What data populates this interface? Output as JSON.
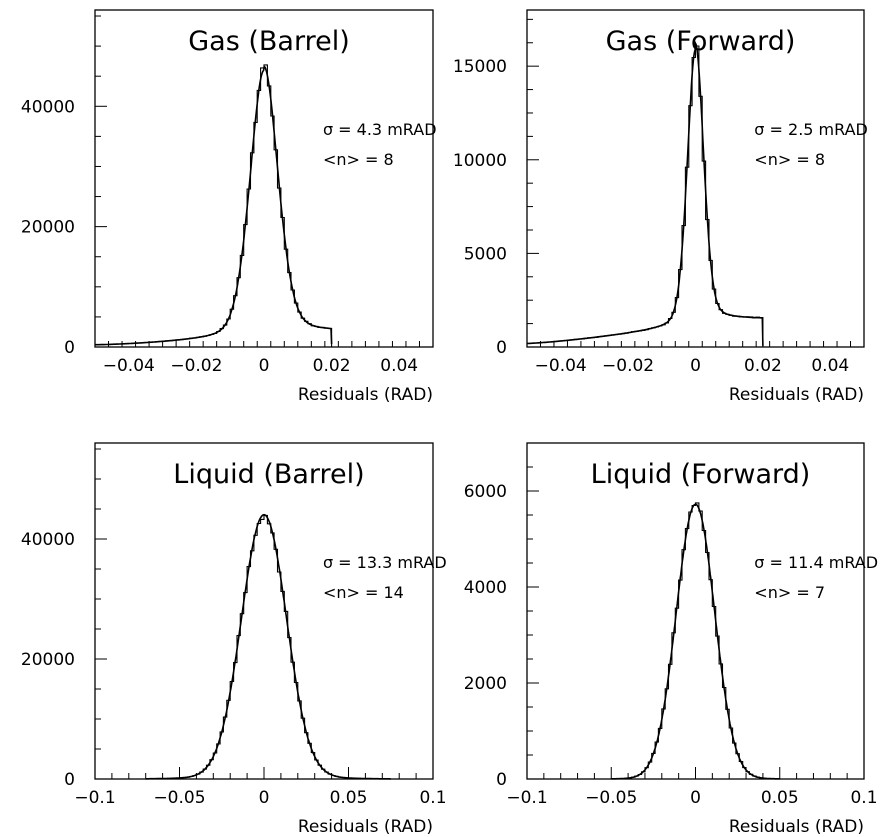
{
  "chart_data": [
    {
      "id": "gas-barrel",
      "type": "histogram",
      "title": "Gas (Barrel)",
      "xlabel": "Residuals (RAD)",
      "ylabel": "",
      "xlim": [
        -0.05,
        0.05
      ],
      "ylim": [
        0,
        56000
      ],
      "xticks": [
        -0.04,
        -0.02,
        0,
        0.02,
        0.04
      ],
      "xtick_labels": [
        "−0.04",
        "−0.02",
        "0",
        "0.02",
        "0.04"
      ],
      "yticks": [
        0,
        20000,
        40000
      ],
      "ytick_labels": [
        "0",
        "20000",
        "40000"
      ],
      "annotations": [
        "σ = 4.3 mRAD",
        "<n> = 8"
      ],
      "shape": {
        "amp": 44000,
        "mu": 0,
        "sigma": 0.0043,
        "gamma": 0.0042,
        "bgStart": -0.05,
        "bgEnd": 0.02,
        "bgAt0": 2200,
        "bgSlope": 1.5,
        "bgNeg": 2000,
        "bgPos": 2600
      },
      "hist_range": [
        -0.05,
        0.02
      ],
      "fit_range": [
        -0.05,
        0.02
      ]
    },
    {
      "id": "gas-forward",
      "type": "histogram",
      "title": "Gas (Forward)",
      "xlabel": "Residuals (RAD)",
      "ylabel": "",
      "xlim": [
        -0.05,
        0.05
      ],
      "ylim": [
        0,
        18000
      ],
      "xticks": [
        -0.04,
        -0.02,
        0,
        0.02,
        0.04
      ],
      "xtick_labels": [
        "−0.04",
        "−0.02",
        "0",
        "0.02",
        "0.04"
      ],
      "yticks": [
        0,
        5000,
        10000,
        15000
      ],
      "ytick_labels": [
        "0",
        "5000",
        "10000",
        "15000"
      ],
      "annotations": [
        "σ = 2.5 mRAD",
        "<n> = 8"
      ],
      "shape": {
        "amp": 14700,
        "mu": 0,
        "sigma": 0.0025,
        "gamma": 0.0025,
        "bgStart": -0.05,
        "bgEnd": 0.02,
        "bgAt0": 1500,
        "bgSlope": 1.3,
        "bgNeg": 1200,
        "bgPos": 1500
      },
      "hist_range": [
        -0.05,
        0.02
      ],
      "fit_range": [
        -0.05,
        0.02
      ]
    },
    {
      "id": "liquid-barrel",
      "type": "histogram",
      "title": "Liquid (Barrel)",
      "xlabel": "Residuals (RAD)",
      "ylabel": "",
      "xlim": [
        -0.1,
        0.1
      ],
      "ylim": [
        0,
        56000
      ],
      "xticks": [
        -0.1,
        -0.05,
        0,
        0.05,
        0.1
      ],
      "xtick_labels": [
        "−0.1",
        "−0.05",
        "0",
        "0.05",
        "0.1"
      ],
      "yticks": [
        0,
        20000,
        40000
      ],
      "ytick_labels": [
        "0",
        "20000",
        "40000"
      ],
      "annotations": [
        "σ = 13.3 mRAD",
        "<n> = 14"
      ],
      "shape": {
        "amp": 43500,
        "mu": 0,
        "sigma": 0.0133,
        "gamma": 0.0,
        "bgStart": -0.052,
        "bgEnd": 0.05,
        "bgAt0": 0,
        "bgSlope": 0,
        "bgNeg": 0,
        "bgPos": 0,
        "tail": 0.25,
        "tailWidth": 0.03
      },
      "hist_range": [
        -0.052,
        0.07
      ],
      "fit_range": [
        -0.07,
        0.075
      ]
    },
    {
      "id": "liquid-forward",
      "type": "histogram",
      "title": "Liquid (Forward)",
      "xlabel": "Residuals (RAD)",
      "ylabel": "",
      "xlim": [
        -0.1,
        0.1
      ],
      "ylim": [
        0,
        7000
      ],
      "xticks": [
        -0.1,
        -0.05,
        0,
        0.05,
        0.1
      ],
      "xtick_labels": [
        "−0.1",
        "−0.05",
        "0",
        "0.05",
        "0.1"
      ],
      "yticks": [
        0,
        2000,
        4000,
        6000
      ],
      "ytick_labels": [
        "0",
        "2000",
        "4000",
        "6000"
      ],
      "annotations": [
        "σ = 11.4 mRAD",
        "<n> = 7"
      ],
      "shape": {
        "amp": 5700,
        "mu": 0,
        "sigma": 0.0114,
        "gamma": 0.0,
        "bgStart": -0.05,
        "bgEnd": 0.05,
        "bgAt0": 0,
        "bgSlope": 0,
        "bgNeg": 0,
        "bgPos": 0,
        "tail": 0.08,
        "tailWidth": 0.025
      },
      "hist_range": [
        -0.05,
        0.05
      ],
      "fit_range": [
        -0.05,
        0.05
      ]
    }
  ]
}
